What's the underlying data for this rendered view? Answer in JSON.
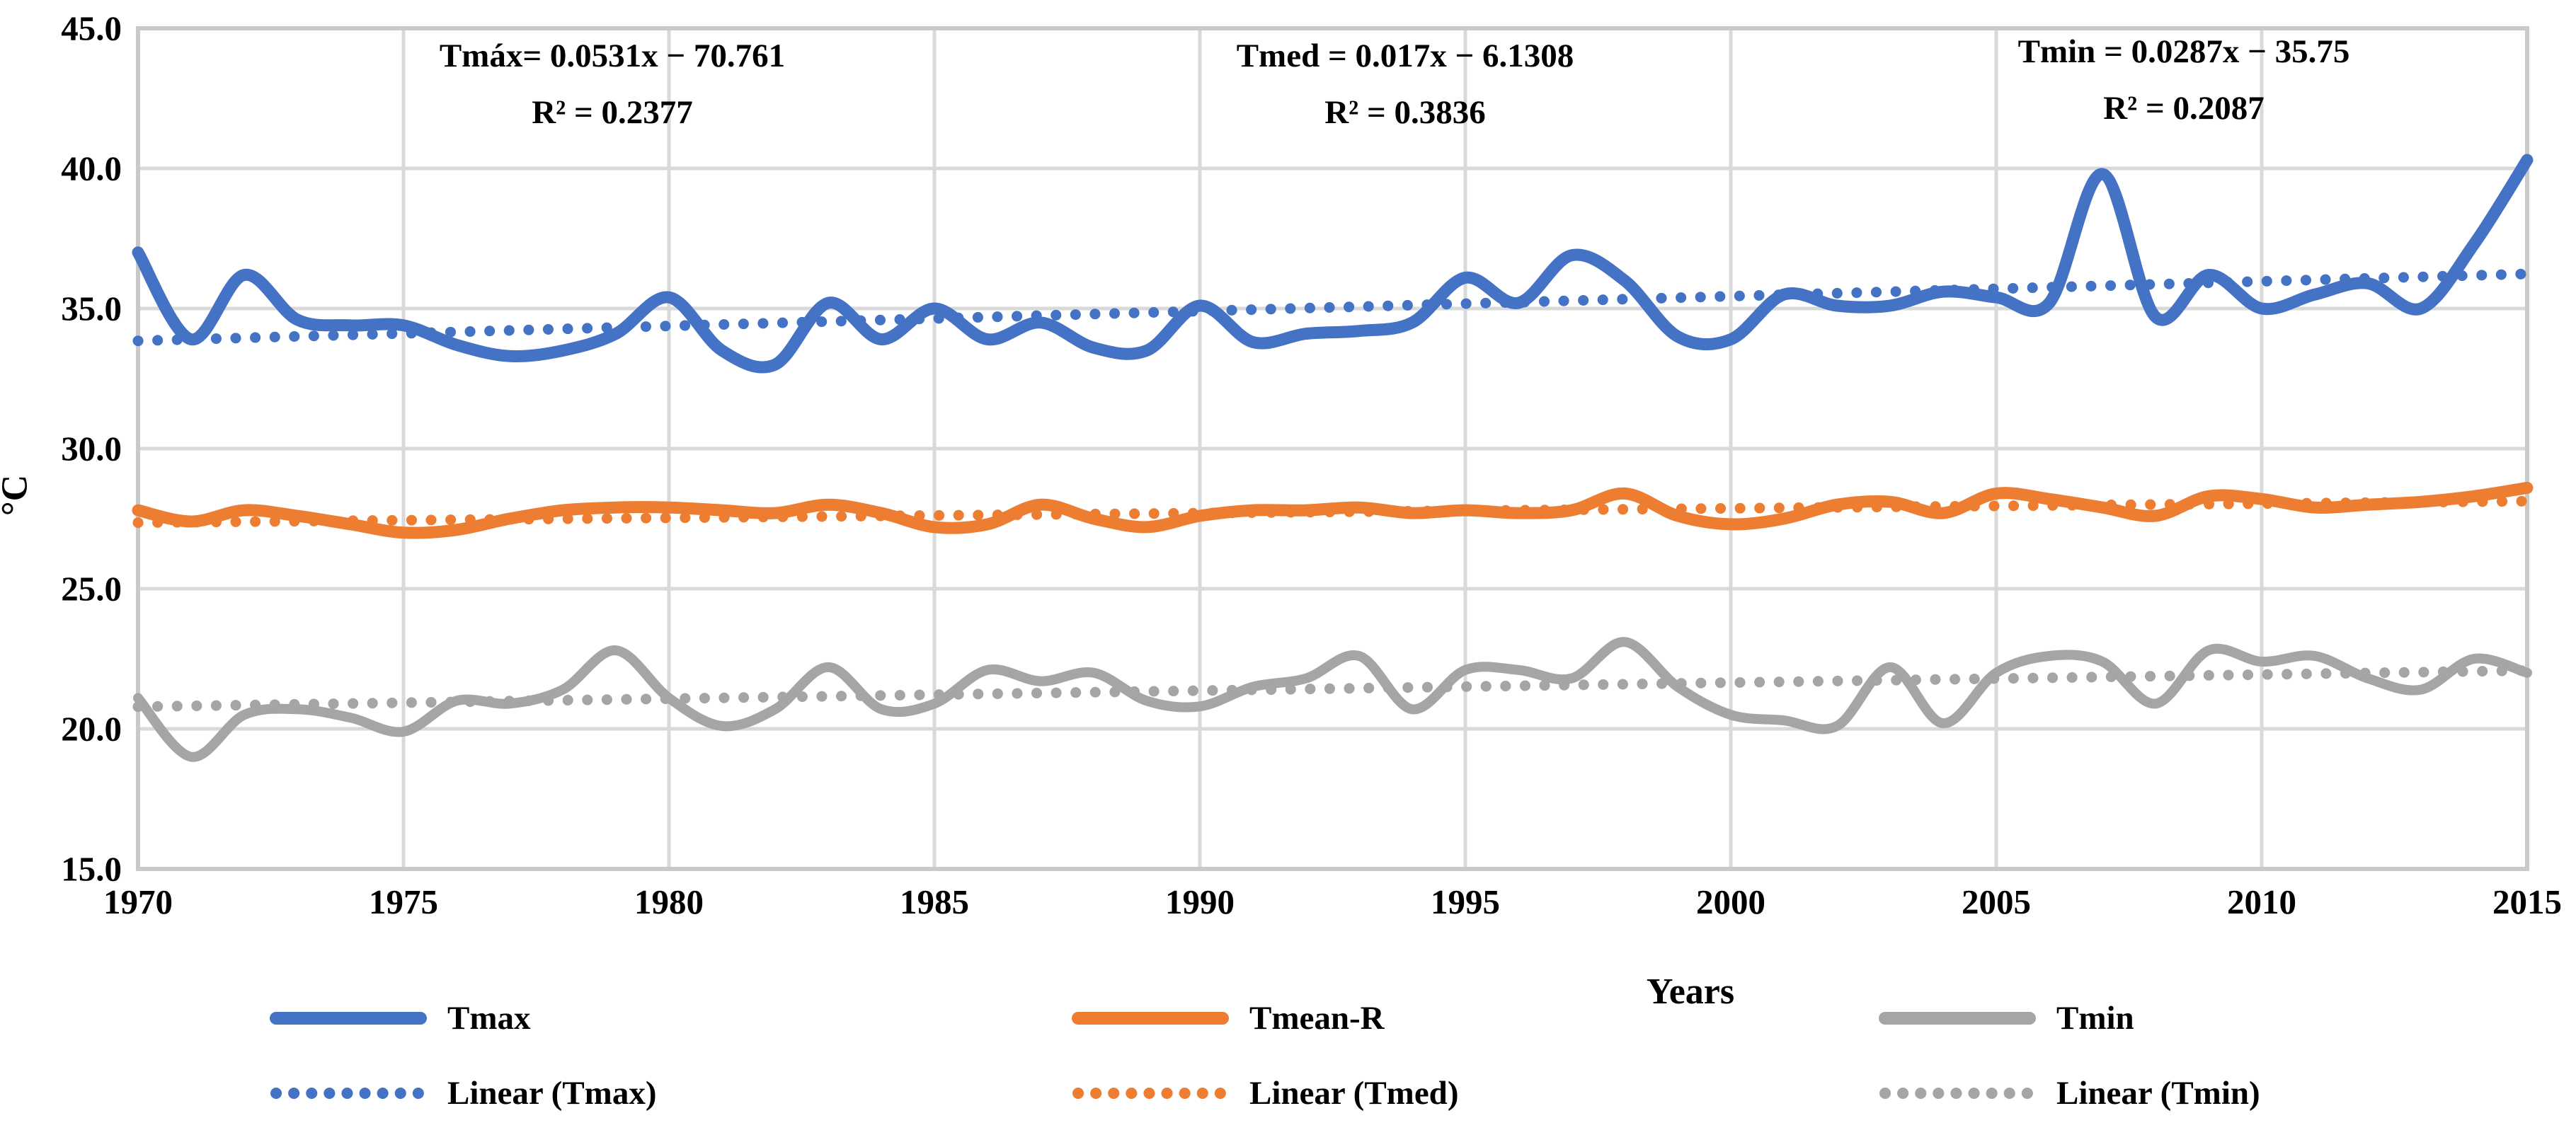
{
  "chart_data": {
    "type": "line",
    "title": "",
    "xlabel": "Years",
    "ylabel": "°C",
    "xlim": [
      1970,
      2015
    ],
    "ylim": [
      15,
      45
    ],
    "grid": true,
    "legend_position": "bottom",
    "x_tick_labels": [
      "1970",
      "1975",
      "1980",
      "1985",
      "1990",
      "1995",
      "2000",
      "2005",
      "2010",
      "2015"
    ],
    "x_ticks": [
      1970,
      1975,
      1980,
      1985,
      1990,
      1995,
      2000,
      2005,
      2010,
      2015
    ],
    "y_tick_labels": [
      "15.0",
      "20.0",
      "25.0",
      "30.0",
      "35.0",
      "40.0",
      "45.0"
    ],
    "y_ticks": [
      15,
      20,
      25,
      30,
      35,
      40,
      45
    ],
    "x": [
      1970,
      1971,
      1972,
      1973,
      1974,
      1975,
      1976,
      1977,
      1978,
      1979,
      1980,
      1981,
      1982,
      1983,
      1984,
      1985,
      1986,
      1987,
      1988,
      1989,
      1990,
      1991,
      1992,
      1993,
      1994,
      1995,
      1996,
      1997,
      1998,
      1999,
      2000,
      2001,
      2002,
      2003,
      2004,
      2005,
      2006,
      2007,
      2008,
      2009,
      2010,
      2011,
      2012,
      2013,
      2014,
      2015
    ],
    "series": [
      {
        "name": "Tmax",
        "color": "#4472C4",
        "style": "solid",
        "values": [
          37.0,
          33.9,
          36.2,
          34.6,
          34.4,
          34.4,
          33.7,
          33.3,
          33.5,
          34.1,
          35.4,
          33.5,
          33.0,
          35.2,
          33.9,
          35.0,
          33.9,
          34.5,
          33.6,
          33.5,
          35.1,
          33.8,
          34.1,
          34.2,
          34.5,
          36.1,
          35.2,
          36.9,
          36.0,
          34.0,
          33.9,
          35.5,
          35.1,
          35.1,
          35.6,
          35.4,
          35.2,
          39.8,
          34.7,
          36.2,
          35.0,
          35.5,
          35.9,
          35.0,
          37.3,
          40.3
        ]
      },
      {
        "name": "Tmean-R",
        "color": "#ED7D31",
        "style": "solid",
        "values": [
          27.8,
          27.4,
          27.8,
          27.6,
          27.3,
          27.0,
          27.1,
          27.5,
          27.8,
          27.9,
          27.9,
          27.8,
          27.7,
          28.0,
          27.7,
          27.2,
          27.3,
          28.0,
          27.5,
          27.2,
          27.6,
          27.8,
          27.8,
          27.9,
          27.7,
          27.8,
          27.7,
          27.8,
          28.4,
          27.6,
          27.3,
          27.5,
          28.0,
          28.1,
          27.7,
          28.4,
          28.2,
          27.9,
          27.6,
          28.3,
          28.2,
          27.9,
          28.0,
          28.1,
          28.3,
          28.6
        ]
      },
      {
        "name": "Tmin",
        "color": "#A5A5A5",
        "style": "solid",
        "values": [
          21.1,
          19.0,
          20.5,
          20.7,
          20.4,
          19.9,
          21.0,
          20.9,
          21.4,
          22.8,
          21.1,
          20.1,
          20.7,
          22.2,
          20.7,
          20.9,
          22.1,
          21.7,
          22.0,
          21.0,
          20.8,
          21.5,
          21.8,
          22.6,
          20.7,
          22.1,
          22.1,
          21.8,
          23.1,
          21.5,
          20.5,
          20.3,
          20.1,
          22.2,
          20.2,
          22.0,
          22.6,
          22.4,
          20.9,
          22.8,
          22.4,
          22.6,
          21.8,
          21.4,
          22.5,
          22.0
        ]
      },
      {
        "name": "Linear (Tmax)",
        "color": "#4472C4",
        "style": "dotted",
        "trend": {
          "slope": 0.0531,
          "intercept": -70.761
        }
      },
      {
        "name": "Linear (Tmed)",
        "color": "#ED7D31",
        "style": "dotted",
        "trend": {
          "slope": 0.017,
          "intercept": -6.1308
        }
      },
      {
        "name": "Linear (Tmin)",
        "color": "#A5A5A5",
        "style": "dotted",
        "trend": {
          "slope": 0.0287,
          "intercept": -35.75
        }
      }
    ],
    "annotations": [
      {
        "lines": [
          "Tmáx= 0.0531x − 70.761",
          "R² = 0.2377"
        ]
      },
      {
        "lines": [
          "Tmed = 0.017x − 6.1308",
          "R² = 0.3836"
        ]
      },
      {
        "lines": [
          "Tmin = 0.0287x − 35.75",
          "R² = 0.2087"
        ]
      }
    ],
    "colors": {
      "tmax": "#4472C4",
      "tmean": "#ED7D31",
      "tmin": "#A5A5A5",
      "gridline": "#D9D9D9",
      "text": "#000000"
    }
  }
}
